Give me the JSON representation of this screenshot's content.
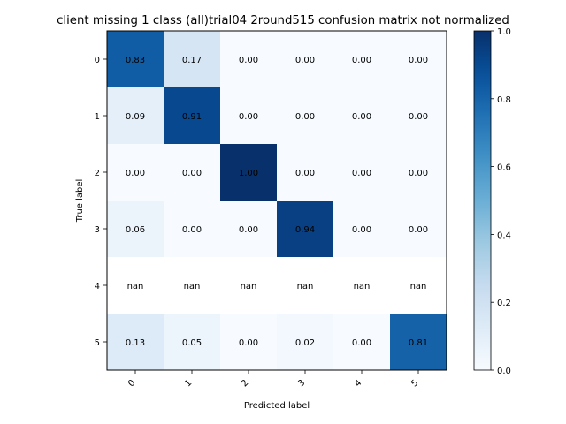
{
  "chart_data": {
    "type": "heatmap",
    "title": "client missing 1 class (all)trial04 2round515 confusion matrix not normalized",
    "xlabel": "Predicted label",
    "ylabel": "True label",
    "x_categories": [
      "0",
      "1",
      "2",
      "3",
      "4",
      "5"
    ],
    "y_categories": [
      "0",
      "1",
      "2",
      "3",
      "4",
      "5"
    ],
    "values": [
      [
        0.83,
        0.17,
        0.0,
        0.0,
        0.0,
        0.0
      ],
      [
        0.09,
        0.91,
        0.0,
        0.0,
        0.0,
        0.0
      ],
      [
        0.0,
        0.0,
        1.0,
        0.0,
        0.0,
        0.0
      ],
      [
        0.06,
        0.0,
        0.0,
        0.94,
        0.0,
        0.0
      ],
      [
        null,
        null,
        null,
        null,
        null,
        null
      ],
      [
        0.13,
        0.05,
        0.0,
        0.02,
        0.0,
        0.81
      ]
    ],
    "labels": [
      [
        "0.83",
        "0.17",
        "0.00",
        "0.00",
        "0.00",
        "0.00"
      ],
      [
        "0.09",
        "0.91",
        "0.00",
        "0.00",
        "0.00",
        "0.00"
      ],
      [
        "0.00",
        "0.00",
        "1.00",
        "0.00",
        "0.00",
        "0.00"
      ],
      [
        "0.06",
        "0.00",
        "0.00",
        "0.94",
        "0.00",
        "0.00"
      ],
      [
        "nan",
        "nan",
        "nan",
        "nan",
        "nan",
        "nan"
      ],
      [
        "0.13",
        "0.05",
        "0.00",
        "0.02",
        "0.00",
        "0.81"
      ]
    ],
    "colormap": "Blues",
    "colorbar": {
      "range": [
        0.0,
        1.0
      ],
      "ticks": [
        "0.0",
        "0.2",
        "0.4",
        "0.6",
        "0.8",
        "1.0"
      ]
    },
    "grid": false,
    "x_tick_rotation_deg": 45
  }
}
